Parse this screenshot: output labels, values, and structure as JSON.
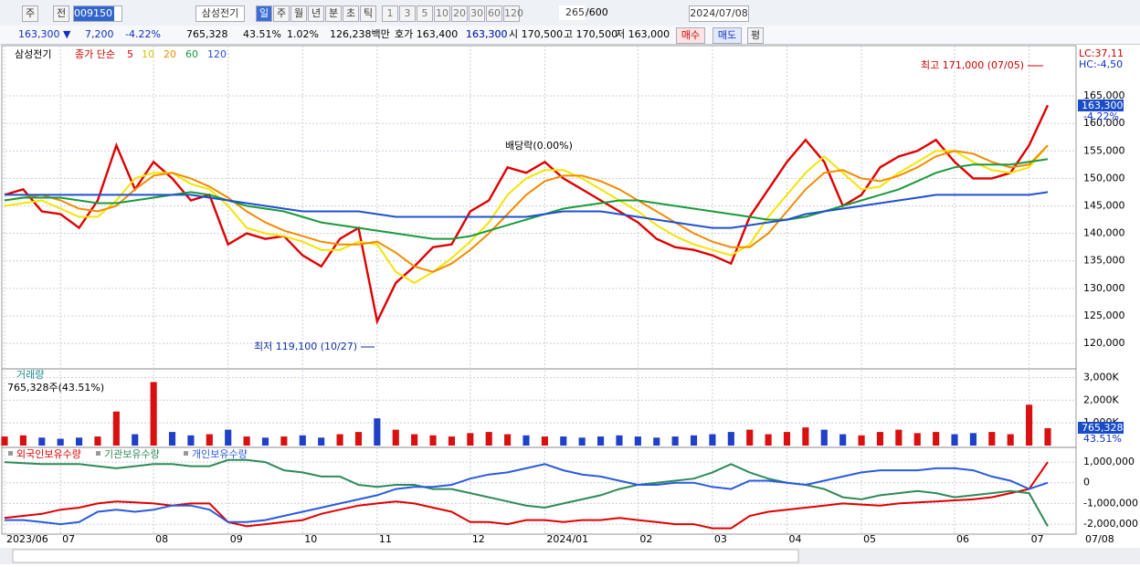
{
  "toolbar": {
    "market": "주",
    "prev": "전",
    "code": "009150",
    "name": "삼성전기",
    "periods": [
      "일",
      "주",
      "월",
      "년",
      "분",
      "초",
      "틱"
    ],
    "intervals": [
      "1",
      "3",
      "5",
      "10",
      "20",
      "30",
      "60",
      "120"
    ],
    "count": "265",
    "max": "/600",
    "date": "2024/07/08"
  },
  "quote": {
    "price": "163,300 ▼",
    "change": "7,200",
    "rate": "-4.22%",
    "volume": "765,328",
    "vol_rate": "43.51%",
    "turnover": "1.02%",
    "amount": "126,238백만",
    "ask_label": "호가 163,400",
    "bid": "163,300",
    "open": "시 170,500",
    "high": "고 170,500",
    "low": "저 163,000",
    "buy": "매수",
    "sell": "매도",
    "avg": "평"
  },
  "chart_data": [
    {
      "type": "line",
      "title": "삼성전기",
      "indicator": "종가 단순",
      "categories": [
        "2023/06",
        null,
        null,
        "07",
        null,
        null,
        null,
        null,
        "08",
        null,
        null,
        null,
        "09",
        null,
        null,
        null,
        "10",
        null,
        null,
        null,
        "11",
        null,
        null,
        null,
        null,
        "12",
        null,
        null,
        null,
        "2024/01",
        null,
        null,
        null,
        null,
        "02",
        null,
        null,
        null,
        "03",
        null,
        null,
        null,
        "04",
        null,
        null,
        null,
        "05",
        null,
        null,
        null,
        null,
        "06",
        null,
        null,
        null,
        "07",
        null
      ],
      "x_end_label": "07/08",
      "series": [
        {
          "name": "5",
          "color": "#e00000",
          "values": [
            147000,
            148000,
            144000,
            143500,
            141000,
            146000,
            156000,
            148000,
            153000,
            150000,
            146000,
            147000,
            138000,
            140000,
            139000,
            139500,
            136000,
            134000,
            139000,
            141000,
            124000,
            131000,
            134000,
            137500,
            138000,
            144000,
            146000,
            152000,
            151000,
            153000,
            150000,
            148000,
            146000,
            144000,
            142000,
            139000,
            137500,
            137000,
            136000,
            134500,
            143000,
            148000,
            153000,
            157000,
            153000,
            145000,
            147000,
            152000,
            154000,
            155000,
            157000,
            153000,
            150000,
            150000,
            151000,
            156000,
            163300
          ]
        },
        {
          "name": "10",
          "color": "#f5e400",
          "values": [
            145000,
            145500,
            146000,
            144500,
            143000,
            143000,
            146000,
            150000,
            151000,
            151000,
            149000,
            148000,
            145000,
            141000,
            140000,
            139500,
            138500,
            137000,
            137000,
            138500,
            138000,
            133000,
            131000,
            133000,
            135500,
            138500,
            142000,
            147000,
            150000,
            151500,
            151500,
            150000,
            148000,
            146000,
            144000,
            141500,
            139500,
            138000,
            137000,
            136000,
            138000,
            143000,
            147000,
            151000,
            154000,
            151000,
            148000,
            148500,
            151000,
            153000,
            155000,
            155000,
            153000,
            151500,
            151000,
            152000,
            156000
          ]
        },
        {
          "name": "20",
          "color": "#f08c00",
          "values": [
            146000,
            146500,
            147000,
            146000,
            144500,
            144000,
            145000,
            148000,
            150500,
            151000,
            150000,
            148500,
            146500,
            144000,
            142000,
            140500,
            139500,
            138500,
            138000,
            138000,
            138500,
            136500,
            134000,
            133000,
            134500,
            137000,
            140000,
            143500,
            147000,
            149500,
            150500,
            150500,
            149500,
            148000,
            146000,
            144000,
            142000,
            140000,
            138500,
            137500,
            137500,
            140000,
            144000,
            148000,
            151000,
            151500,
            150000,
            149500,
            150500,
            152000,
            154000,
            155000,
            154500,
            153000,
            152000,
            152500,
            156000
          ]
        },
        {
          "name": "60",
          "color": "#1a9a3a",
          "values": [
            146000,
            146500,
            146500,
            146500,
            146000,
            145500,
            145500,
            146000,
            146500,
            147000,
            147500,
            147000,
            146000,
            145000,
            144500,
            144000,
            143000,
            142000,
            141500,
            141000,
            140500,
            140000,
            139500,
            139000,
            139000,
            139500,
            140500,
            141500,
            142500,
            143500,
            144500,
            145000,
            145500,
            146000,
            146000,
            145500,
            145000,
            144500,
            144000,
            143500,
            143000,
            142500,
            142500,
            143000,
            144000,
            145000,
            146000,
            147000,
            148000,
            149500,
            151000,
            152000,
            152500,
            152500,
            152500,
            153000,
            153500
          ]
        },
        {
          "name": "120",
          "color": "#2050d0",
          "values": [
            147000,
            147000,
            147000,
            147000,
            147000,
            147000,
            147000,
            147000,
            147000,
            147000,
            147000,
            146500,
            146000,
            145500,
            145000,
            144500,
            144000,
            144000,
            144000,
            144000,
            143500,
            143000,
            143000,
            143000,
            143000,
            143000,
            143000,
            143000,
            143000,
            143500,
            144000,
            144000,
            144000,
            143500,
            143000,
            142500,
            142000,
            141500,
            141000,
            141000,
            141500,
            142000,
            142500,
            143500,
            144000,
            144500,
            145000,
            145500,
            146000,
            146500,
            147000,
            147000,
            147000,
            147000,
            147000,
            147000,
            147500
          ]
        }
      ],
      "ylim": [
        115700,
        173800
      ],
      "yticks": [
        {
          "value": 120000,
          "label": "120,000"
        },
        {
          "value": 125000,
          "label": "125,000"
        },
        {
          "value": 130000,
          "label": "130,000"
        },
        {
          "value": 135000,
          "label": "135,000"
        },
        {
          "value": 140000,
          "label": "140,000"
        },
        {
          "value": 145000,
          "label": "145,000"
        },
        {
          "value": 150000,
          "label": "150,000"
        },
        {
          "value": 155000,
          "label": "155,000"
        },
        {
          "value": 160000,
          "label": "160,000"
        },
        {
          "value": 165000,
          "label": "165,000"
        }
      ],
      "annotations": {
        "high": "최고 171,000 (07/05)",
        "low": "최저 119,100 (10/27)",
        "dividend": "배당락(0.00%)",
        "lc": "LC:37,11",
        "hc": "HC:-4,50",
        "last": "163,300",
        "last_rate": "-4.22%"
      },
      "grid": true
    },
    {
      "type": "bar",
      "title": "거래량",
      "subtitle": "765,328주(43.51%)",
      "colors": {
        "up": "#d81010",
        "down": "#2040c8"
      },
      "values": [
        400,
        450,
        350,
        300,
        350,
        400,
        1500,
        500,
        2800,
        600,
        450,
        500,
        700,
        400,
        350,
        400,
        450,
        350,
        500,
        600,
        1200,
        700,
        500,
        450,
        400,
        550,
        600,
        500,
        450,
        400,
        400,
        350,
        400,
        450,
        400,
        350,
        400,
        450,
        500,
        600,
        700,
        500,
        600,
        800,
        700,
        500,
        450,
        600,
        700,
        550,
        600,
        500,
        550,
        600,
        500,
        1800,
        765.328
      ],
      "ylim": [
        0,
        3300
      ],
      "yticks": [
        {
          "value": 1000,
          "label": "1,000K"
        },
        {
          "value": 2000,
          "label": "2,000K"
        },
        {
          "value": 3000,
          "label": "3,000K"
        }
      ],
      "last_label": "765,328",
      "last_rate": "43.51%",
      "grid": true
    },
    {
      "type": "line",
      "grid": true,
      "series": [
        {
          "name": "외국인보유수량",
          "color": "#e00000",
          "values": [
            -1700000,
            -1600000,
            -1500000,
            -1300000,
            -1200000,
            -1000000,
            -900000,
            -950000,
            -1000000,
            -1100000,
            -1000000,
            -1000000,
            -1900000,
            -2100000,
            -2000000,
            -1900000,
            -1800000,
            -1500000,
            -1300000,
            -1100000,
            -1000000,
            -900000,
            -1000000,
            -1200000,
            -1400000,
            -1900000,
            -1900000,
            -2000000,
            -1800000,
            -1800000,
            -1900000,
            -1800000,
            -1800000,
            -1700000,
            -1800000,
            -1900000,
            -2000000,
            -2000000,
            -2200000,
            -2200000,
            -1600000,
            -1400000,
            -1300000,
            -1200000,
            -1100000,
            -1000000,
            -1050000,
            -1100000,
            -1000000,
            -950000,
            -900000,
            -850000,
            -800000,
            -700000,
            -500000,
            -300000,
            1000000
          ]
        },
        {
          "name": "기관보유수량",
          "color": "#2e8b57",
          "values": [
            1000000,
            950000,
            900000,
            900000,
            900000,
            800000,
            700000,
            800000,
            900000,
            900000,
            800000,
            800000,
            1100000,
            1100000,
            1000000,
            600000,
            500000,
            300000,
            300000,
            -100000,
            -200000,
            -100000,
            -100000,
            -300000,
            -300000,
            -500000,
            -700000,
            -900000,
            -1100000,
            -1200000,
            -1000000,
            -800000,
            -600000,
            -300000,
            -100000,
            0,
            100000,
            200000,
            500000,
            900000,
            500000,
            200000,
            0,
            -100000,
            -300000,
            -700000,
            -800000,
            -600000,
            -500000,
            -400000,
            -500000,
            -700000,
            -600000,
            -500000,
            -400000,
            -500000,
            -2100000
          ]
        },
        {
          "name": "개인보유수량",
          "color": "#2a5bdc",
          "values": [
            -1800000,
            -1800000,
            -1900000,
            -2000000,
            -1900000,
            -1400000,
            -1300000,
            -1400000,
            -1300000,
            -1100000,
            -1100000,
            -1300000,
            -1900000,
            -1900000,
            -1800000,
            -1600000,
            -1400000,
            -1200000,
            -1000000,
            -800000,
            -600000,
            -300000,
            -200000,
            -200000,
            -100000,
            200000,
            400000,
            500000,
            700000,
            900000,
            600000,
            400000,
            300000,
            100000,
            -100000,
            -100000,
            0,
            0,
            -200000,
            -300000,
            100000,
            100000,
            0,
            -100000,
            100000,
            300000,
            500000,
            600000,
            600000,
            600000,
            700000,
            700000,
            600000,
            300000,
            100000,
            -300000,
            0
          ]
        }
      ],
      "ylim": [
        -2480000,
        1620000
      ],
      "yticks": [
        {
          "value": 1000000,
          "label": "1,000,000"
        },
        0,
        {
          "value": -1000000,
          "label": "-1,000,000"
        },
        {
          "value": -2000000,
          "label": "-2,000,000"
        }
      ]
    }
  ]
}
